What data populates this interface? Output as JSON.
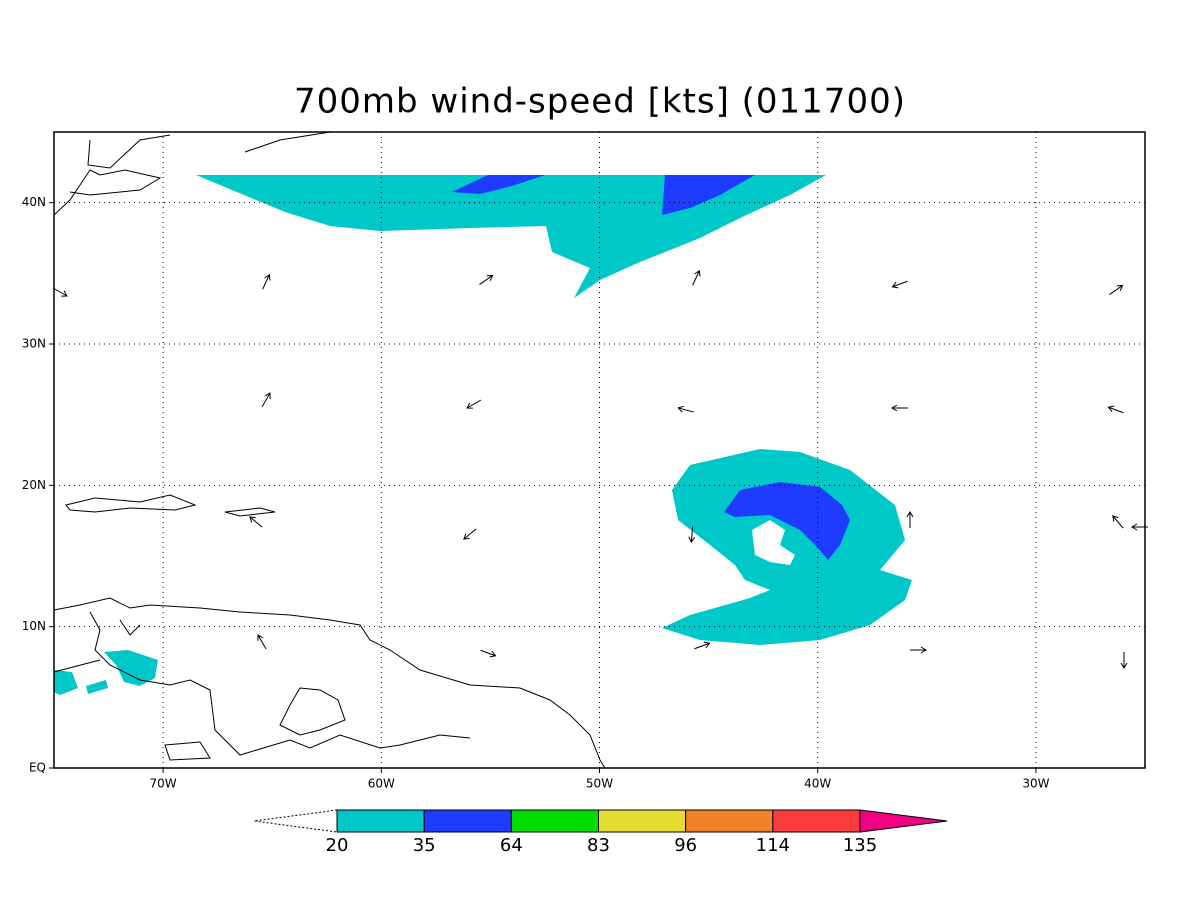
{
  "title": "700mb wind-speed [kts] (011700)",
  "map": {
    "xlim": [
      -75,
      -25
    ],
    "ylim": [
      0,
      45
    ],
    "xticks": [
      {
        "value": -70,
        "label": "70W"
      },
      {
        "value": -60,
        "label": "60W"
      },
      {
        "value": -50,
        "label": "50W"
      },
      {
        "value": -40,
        "label": "40W"
      },
      {
        "value": -30,
        "label": "30W"
      }
    ],
    "yticks": [
      {
        "value": 0,
        "label": "EQ"
      },
      {
        "value": 10,
        "label": "10N"
      },
      {
        "value": 20,
        "label": "20N"
      },
      {
        "value": 30,
        "label": "30N"
      },
      {
        "value": 40,
        "label": "40N"
      }
    ],
    "grid": true
  },
  "colorbar": {
    "levels": [
      20,
      35,
      64,
      83,
      96,
      114,
      135
    ],
    "colors": [
      "#ffffff",
      "#00c8c8",
      "#1e3cff",
      "#00dc00",
      "#e6dc32",
      "#f08228",
      "#fa3c3c",
      "#f00082"
    ]
  }
}
